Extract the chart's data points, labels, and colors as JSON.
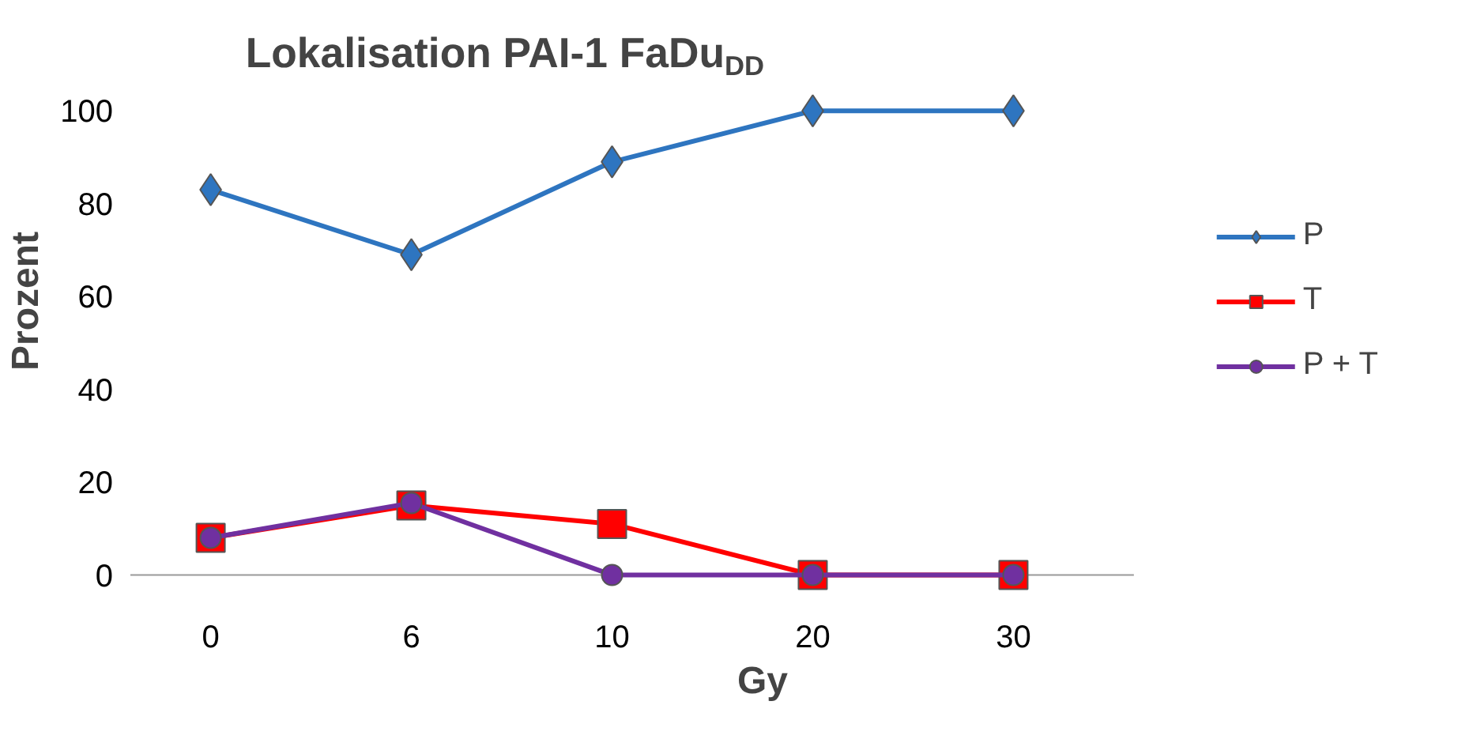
{
  "chart_data": {
    "type": "line",
    "title": "Lokalisation PAI-1 FaDu$_{DD}$",
    "xlabel": "Gy",
    "ylabel": "Prozent",
    "categories": [
      "0",
      "6",
      "10",
      "20",
      "30"
    ],
    "series": [
      {
        "name": "P",
        "color": "#2e75c0",
        "marker": "diamond",
        "values": [
          83,
          69,
          89,
          100,
          100
        ]
      },
      {
        "name": "T",
        "color": "#ff0000",
        "marker": "square",
        "values": [
          8,
          15,
          11,
          0,
          0
        ]
      },
      {
        "name": "P + T",
        "color": "#7030a0",
        "marker": "circle",
        "values": [
          8,
          15.5,
          0,
          0,
          0
        ]
      }
    ],
    "ylim": [
      0,
      100
    ],
    "yticks": [
      0,
      20,
      40,
      60,
      80,
      100
    ],
    "grid": false,
    "legend": "right",
    "line_style": "solid"
  }
}
